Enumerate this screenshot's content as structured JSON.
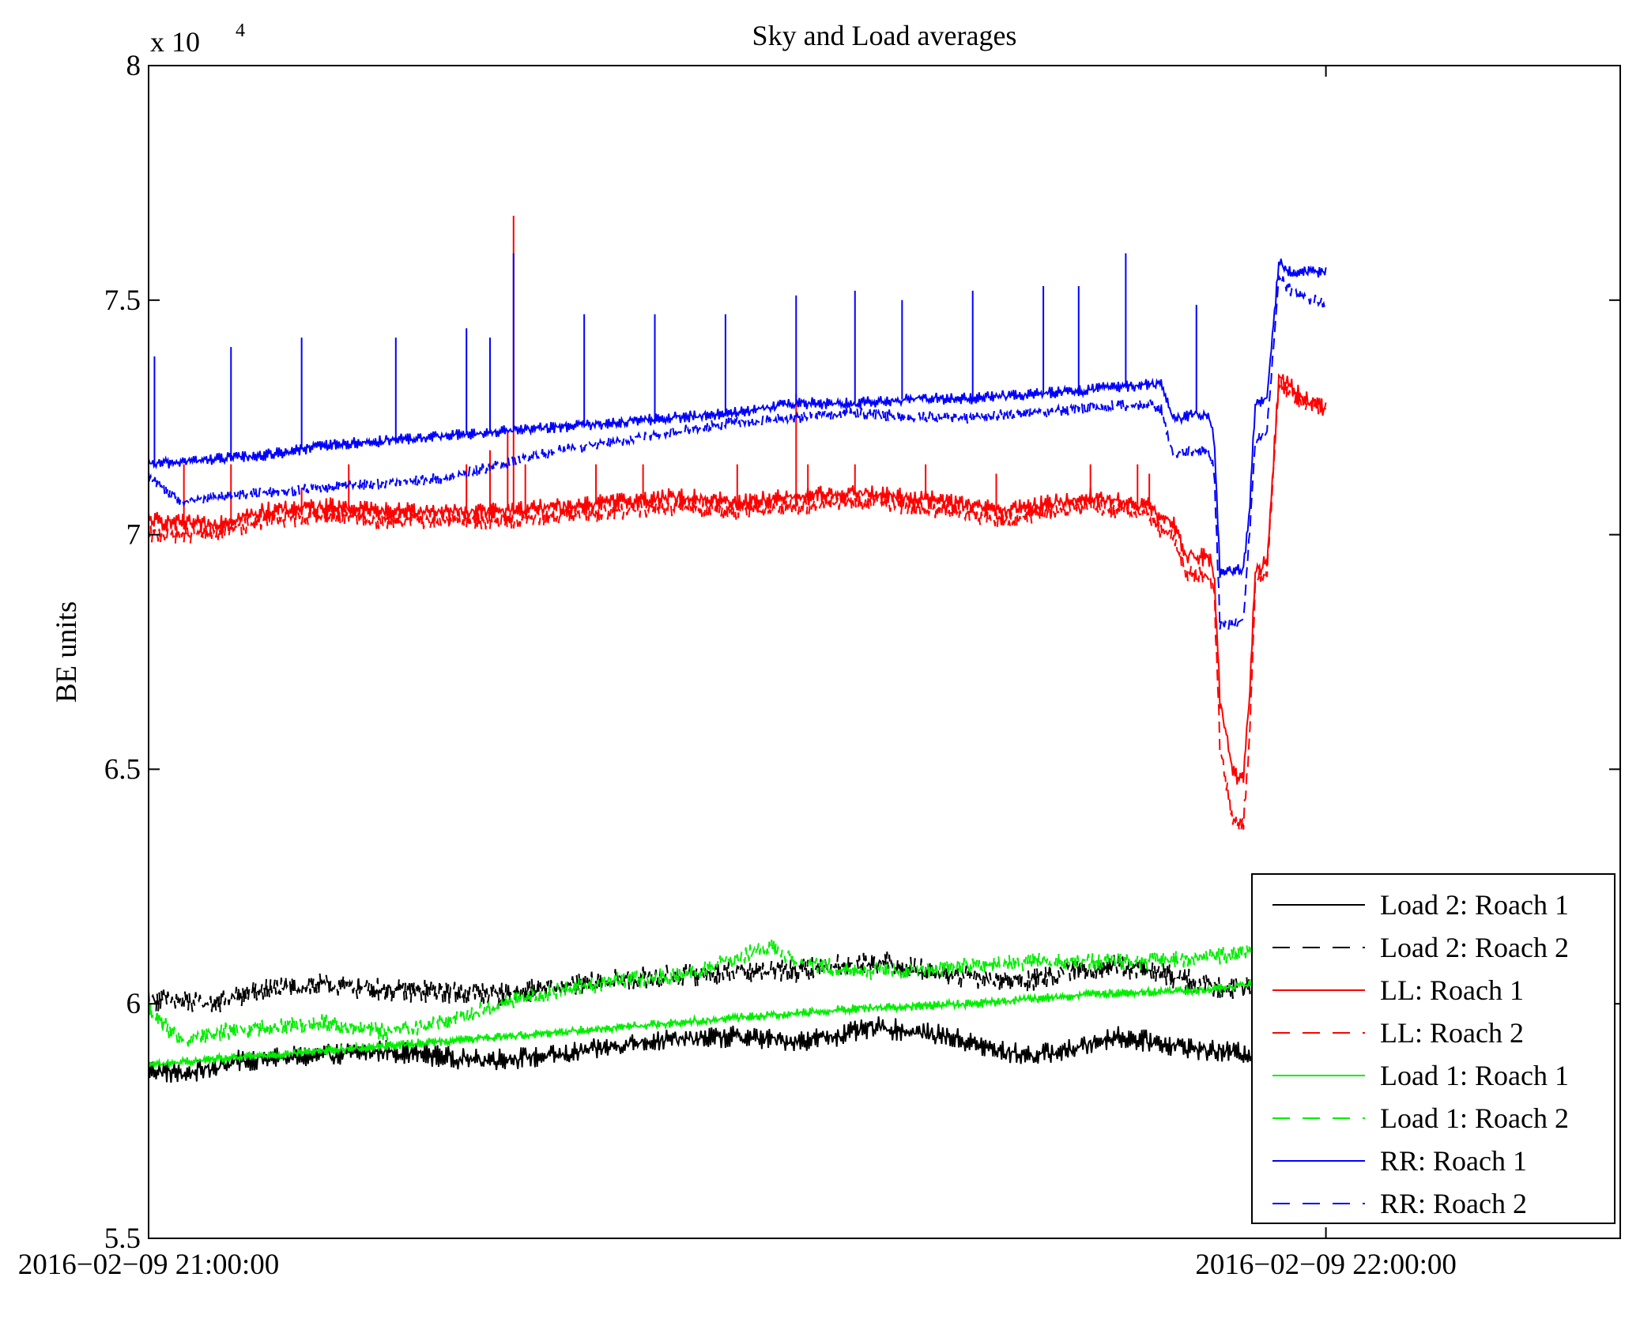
{
  "chart_data": {
    "type": "line",
    "title": "Sky and Load averages",
    "ylabel": "BE units",
    "xlabel": "",
    "y_scale_label": "x 10",
    "y_scale_exponent": "4",
    "ylim": [
      55000,
      80000
    ],
    "y_ticks": [
      55000,
      60000,
      65000,
      70000,
      75000,
      80000
    ],
    "y_tick_labels": [
      "5.5",
      "6",
      "6.5",
      "7",
      "7.5",
      "8"
    ],
    "x_range_minutes": [
      0,
      75
    ],
    "x_ticks_minutes": [
      0,
      60
    ],
    "x_tick_labels": [
      "2016−02−09 21:00:00",
      "2016−02−09 22:00:00"
    ],
    "data_end_minute": 60,
    "legend_position": "lower-right",
    "series": [
      {
        "name": "Load 2: Roach 1",
        "color": "#000000",
        "dash": "solid",
        "t": [
          0,
          3,
          8,
          15,
          20,
          28,
          35,
          42,
          50,
          55,
          58,
          62,
          68,
          72,
          75,
          78,
          82,
          85,
          90,
          95,
          100
        ],
        "values": [
          58600,
          58500,
          58800,
          58900,
          59000,
          58800,
          58900,
          59200,
          59300,
          59200,
          59300,
          59500,
          59300,
          59000,
          58900,
          59000,
          59300,
          59200,
          59000,
          58900,
          58900
        ],
        "noise": 150,
        "spikes": []
      },
      {
        "name": "Load 2: Roach 2",
        "color": "#000000",
        "dash": "dashed",
        "t": [
          0,
          5,
          10,
          15,
          20,
          30,
          40,
          45,
          50,
          55,
          58,
          62,
          68,
          72,
          75,
          78,
          82,
          85,
          90,
          95,
          100
        ],
        "values": [
          60100,
          60000,
          60300,
          60400,
          60300,
          60200,
          60500,
          60600,
          60700,
          60700,
          60800,
          60900,
          60600,
          60500,
          60500,
          60700,
          60800,
          60700,
          60400,
          60300,
          60300
        ],
        "noise": 160,
        "spikes": []
      },
      {
        "name": "LL: Roach 1",
        "color": "#ff0000",
        "dash": "solid",
        "t": [
          0,
          5,
          10,
          15,
          20,
          30,
          35,
          40,
          45,
          50,
          55,
          60,
          68,
          70,
          73,
          75,
          80,
          85,
          86,
          87,
          88,
          90,
          90.5,
          91,
          92,
          92.5,
          93,
          93.5,
          94,
          95,
          96,
          98,
          100
        ],
        "values": [
          70300,
          70200,
          70500,
          70600,
          70500,
          70500,
          70600,
          70700,
          70800,
          70700,
          70800,
          70900,
          70700,
          70600,
          70500,
          70600,
          70800,
          70600,
          70300,
          70300,
          69600,
          69500,
          69200,
          66500,
          65100,
          64800,
          64900,
          66500,
          69200,
          69400,
          73400,
          72900,
          72700
        ],
        "noise": 130,
        "spikes": [
          [
            3,
            71500
          ],
          [
            7,
            71500
          ],
          [
            13,
            71000
          ],
          [
            17,
            71500
          ],
          [
            27,
            71500
          ],
          [
            29,
            71800
          ],
          [
            30.5,
            72200
          ],
          [
            31,
            76800
          ],
          [
            32,
            71500
          ],
          [
            38,
            71500
          ],
          [
            42,
            71500
          ],
          [
            50,
            71500
          ],
          [
            55,
            73000
          ],
          [
            56,
            71500
          ],
          [
            60,
            71500
          ],
          [
            66,
            71500
          ],
          [
            72,
            71300
          ],
          [
            80,
            71500
          ],
          [
            84,
            71500
          ],
          [
            85,
            71300
          ]
        ]
      },
      {
        "name": "LL: Roach 2",
        "color": "#ff0000",
        "dash": "dashed",
        "t": [
          0,
          5,
          10,
          15,
          20,
          30,
          35,
          40,
          45,
          50,
          55,
          60,
          68,
          70,
          73,
          75,
          80,
          85,
          86,
          87,
          88,
          90,
          90.5,
          91,
          92,
          92.5,
          93,
          93.5,
          94,
          95,
          96,
          98,
          100
        ],
        "values": [
          70000,
          70000,
          70300,
          70400,
          70300,
          70300,
          70400,
          70500,
          70600,
          70500,
          70600,
          70700,
          70500,
          70400,
          70300,
          70400,
          70600,
          70400,
          70100,
          70000,
          69200,
          69100,
          68900,
          65500,
          64000,
          63800,
          63900,
          65600,
          69000,
          69200,
          73200,
          72800,
          72700
        ],
        "noise": 120,
        "spikes": []
      },
      {
        "name": "Load 1: Roach 1",
        "color": "#00ee00",
        "dash": "solid",
        "t": [
          0,
          5,
          10,
          20,
          30,
          40,
          50,
          60,
          70,
          80,
          90,
          100
        ],
        "values": [
          58700,
          58800,
          58900,
          59100,
          59300,
          59500,
          59700,
          59900,
          60000,
          60200,
          60300,
          60600
        ],
        "noise": 60,
        "spikes": []
      },
      {
        "name": "Load 1: Roach 2",
        "color": "#00ee00",
        "dash": "dashed",
        "t": [
          0,
          1,
          3,
          4,
          6,
          10,
          15,
          20,
          25,
          30,
          35,
          40,
          45,
          48,
          50,
          53,
          55,
          60,
          65,
          70,
          75,
          80,
          85,
          90,
          95,
          100
        ],
        "values": [
          59900,
          59600,
          59200,
          59300,
          59400,
          59500,
          59600,
          59400,
          59600,
          60000,
          60300,
          60500,
          60600,
          60800,
          61000,
          61200,
          60900,
          60700,
          60700,
          60800,
          60900,
          60900,
          60900,
          61000,
          61100,
          61100
        ],
        "noise": 120,
        "spikes": []
      },
      {
        "name": "RR: Roach 1",
        "color": "#0000ff",
        "dash": "solid",
        "t": [
          0,
          5,
          10,
          15,
          20,
          25,
          30,
          35,
          40,
          45,
          50,
          55,
          60,
          65,
          70,
          75,
          80,
          85,
          86,
          87,
          88,
          89,
          90,
          90.5,
          91,
          92,
          93,
          93.5,
          94,
          95,
          96,
          97,
          98,
          100
        ],
        "values": [
          71500,
          71600,
          71700,
          71900,
          72000,
          72100,
          72200,
          72300,
          72400,
          72500,
          72600,
          72800,
          72800,
          72900,
          72900,
          73000,
          73100,
          73200,
          73200,
          72500,
          72500,
          72600,
          72500,
          72100,
          69200,
          69200,
          69300,
          70500,
          72800,
          72900,
          75800,
          75600,
          75600,
          75600
        ],
        "noise": 80,
        "spikes": [
          [
            0.5,
            73800
          ],
          [
            7,
            74000
          ],
          [
            13,
            74200
          ],
          [
            21,
            74200
          ],
          [
            27,
            74400
          ],
          [
            29,
            74200
          ],
          [
            31,
            76000
          ],
          [
            37,
            74700
          ],
          [
            43,
            74700
          ],
          [
            49,
            74700
          ],
          [
            55,
            75100
          ],
          [
            60,
            75200
          ],
          [
            64,
            75000
          ],
          [
            70,
            75200
          ],
          [
            76,
            75300
          ],
          [
            79,
            75300
          ],
          [
            83,
            76000
          ],
          [
            89,
            74900
          ]
        ]
      },
      {
        "name": "RR: Roach 2",
        "color": "#0000ff",
        "dash": "dashed",
        "t": [
          0,
          3,
          5,
          10,
          15,
          20,
          25,
          30,
          35,
          40,
          45,
          50,
          55,
          60,
          65,
          70,
          75,
          80,
          85,
          86,
          87,
          88,
          89,
          90,
          90.5,
          91,
          92,
          93,
          93.5,
          94,
          95,
          96,
          97,
          98,
          100
        ],
        "values": [
          71200,
          70700,
          70800,
          70900,
          71000,
          71100,
          71200,
          71500,
          71800,
          72000,
          72200,
          72400,
          72500,
          72600,
          72500,
          72500,
          72600,
          72700,
          72800,
          72700,
          71700,
          71800,
          71800,
          71800,
          71400,
          68100,
          68100,
          68200,
          70000,
          72000,
          72200,
          75500,
          75200,
          75100,
          74900
        ],
        "noise": 80,
        "spikes": []
      }
    ]
  }
}
